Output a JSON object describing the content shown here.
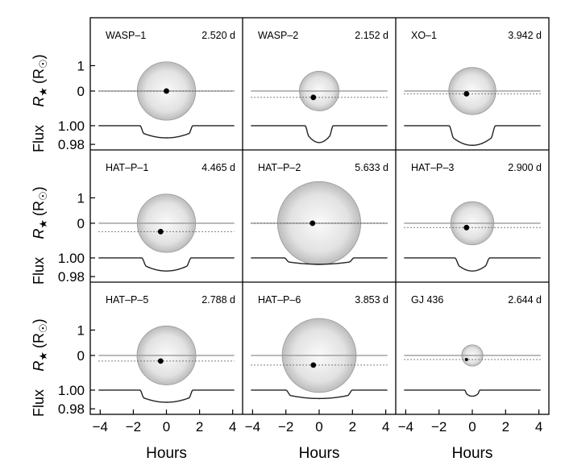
{
  "chart_data": {
    "type": "line",
    "x_axis": {
      "label": "Hours",
      "range": [
        -4.6,
        4.6
      ],
      "ticks": [
        -4,
        -2,
        0,
        2,
        4
      ],
      "tick_labels": [
        "−4",
        "−2",
        "0",
        "2",
        "4"
      ]
    },
    "radius_axis": {
      "label": "R",
      "label_subscript": "★",
      "label_unit": "(R",
      "label_unit_symbol": "☉",
      "label_close": ")",
      "range": [
        -1.4,
        2.0
      ],
      "ticks": [
        1,
        0
      ],
      "tick_labels": [
        "1",
        "0"
      ]
    },
    "flux_axis": {
      "label": "Flux",
      "range": [
        0.968,
        1.006
      ],
      "ticks": [
        1.0,
        0.98
      ],
      "tick_labels": [
        "1.00",
        "0.98"
      ]
    },
    "panels": [
      {
        "name": "WASP–1",
        "period": "2.520 d",
        "star_radius": 1.15,
        "impact_offset": 0.0,
        "depth": 0.013,
        "half_duration": 1.6,
        "ingress": 0.25
      },
      {
        "name": "WASP–2",
        "period": "2.152 d",
        "star_radius": 0.78,
        "impact_offset": -0.25,
        "depth": 0.018,
        "half_duration": 0.85,
        "ingress": 0.25
      },
      {
        "name": "XO–1",
        "period": "3.942 d",
        "star_radius": 0.93,
        "impact_offset": -0.11,
        "depth": 0.021,
        "half_duration": 1.4,
        "ingress": 0.3
      },
      {
        "name": "HAT–P–1",
        "period": "4.465 d",
        "star_radius": 1.15,
        "impact_offset": -0.33,
        "depth": 0.014,
        "half_duration": 1.5,
        "ingress": 0.3
      },
      {
        "name": "HAT–P–2",
        "period": "5.633 d",
        "star_radius": 1.64,
        "impact_offset": 0.0,
        "depth": 0.0068,
        "half_duration": 2.1,
        "ingress": 0.3
      },
      {
        "name": "HAT–P–3",
        "period": "2.900 d",
        "star_radius": 0.85,
        "impact_offset": -0.17,
        "depth": 0.014,
        "half_duration": 1.05,
        "ingress": 0.3
      },
      {
        "name": "HAT–P–5",
        "period": "2.788 d",
        "star_radius": 1.16,
        "impact_offset": -0.22,
        "depth": 0.013,
        "half_duration": 1.6,
        "ingress": 0.25
      },
      {
        "name": "HAT–P–6",
        "period": "3.853 d",
        "star_radius": 1.46,
        "impact_offset": -0.38,
        "depth": 0.009,
        "half_duration": 2.0,
        "ingress": 0.3
      },
      {
        "name": "GJ 436",
        "period": "2.644 d",
        "star_radius": 0.42,
        "impact_offset": -0.16,
        "depth": 0.0065,
        "half_duration": 0.45,
        "ingress": 0.12
      }
    ],
    "legend": "none",
    "grid": false
  }
}
